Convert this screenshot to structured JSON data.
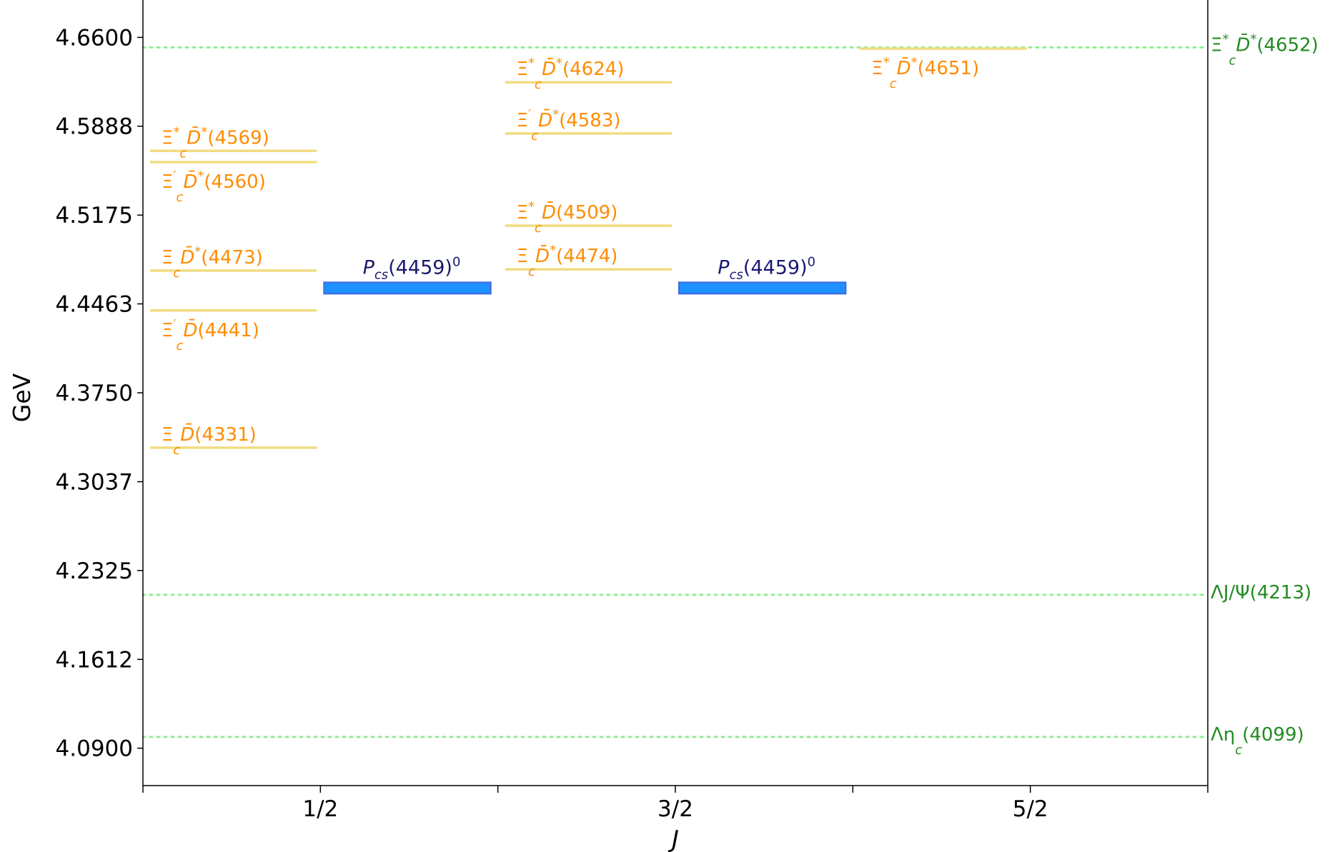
{
  "chart_data": {
    "type": "level-diagram",
    "title": "",
    "xlabel": "J",
    "ylabel": "GeV",
    "xlim": [
      0,
      3
    ],
    "ylim": [
      4.06,
      4.69
    ],
    "x_ticks": [
      {
        "value": 0.5,
        "label": "1/2"
      },
      {
        "value": 1.5,
        "label": "3/2"
      },
      {
        "value": 2.5,
        "label": "5/2"
      }
    ],
    "y_ticks": [
      4.09,
      4.1612,
      4.2325,
      4.3037,
      4.375,
      4.4463,
      4.5175,
      4.5888,
      4.66
    ],
    "y_tick_labels": [
      "4.0900",
      "4.1612",
      "4.2325",
      "4.3037",
      "4.3750",
      "4.4463",
      "4.5175",
      "4.5888",
      "4.6600"
    ],
    "colors": {
      "level_line": "#f0dc82",
      "level_label": "#ff8c00",
      "threshold_line": "#90ee90",
      "threshold_label": "#228b22",
      "state_fill": "#1e90ff",
      "state_edge": "#4169e1",
      "state_label": "#191970"
    },
    "thresholds": [
      {
        "label": "Ξ*c D̄*(4652)",
        "main": "Ξ",
        "sup1": "*",
        "sub": "c",
        "mid": "D̄",
        "sup2": "*",
        "tail": "(4652)",
        "value": 4.652
      },
      {
        "label": "ΛJ/Ψ(4213)",
        "main": "ΛJ/Ψ(4213)",
        "sup1": "",
        "sub": "",
        "mid": "",
        "sup2": "",
        "tail": "",
        "value": 4.213
      },
      {
        "label": "Ληc(4099)",
        "main": "Λη",
        "sup1": "",
        "sub": "c",
        "mid": "",
        "sup2": "",
        "tail": "(4099)",
        "value": 4.099
      }
    ],
    "levels": [
      {
        "J": "1/2",
        "x": 0.5,
        "value": 4.569,
        "label": "Ξ*c D̄*(4569)",
        "main": "Ξ",
        "sup1": "*",
        "sub": "c",
        "mid": "D̄",
        "sup2": "*",
        "tail": "(4569)",
        "label_pos": "above"
      },
      {
        "J": "1/2",
        "x": 0.5,
        "value": 4.56,
        "label": "Ξ′c D̄*(4560)",
        "main": "Ξ",
        "sup1": "′",
        "sub": "c",
        "mid": "D̄",
        "sup2": "*",
        "tail": "(4560)",
        "label_pos": "below"
      },
      {
        "J": "1/2",
        "x": 0.5,
        "value": 4.473,
        "label": "Ξc D̄*(4473)",
        "main": "Ξ",
        "sup1": "",
        "sub": "c",
        "mid": "D̄",
        "sup2": "*",
        "tail": "(4473)",
        "label_pos": "above"
      },
      {
        "J": "1/2",
        "x": 0.5,
        "value": 4.441,
        "label": "Ξ′c D̄(4441)",
        "main": "Ξ",
        "sup1": "′",
        "sub": "c",
        "mid": "D̄",
        "sup2": "",
        "tail": "(4441)",
        "label_pos": "below"
      },
      {
        "J": "1/2",
        "x": 0.5,
        "value": 4.331,
        "label": "Ξc D̄(4331)",
        "main": "Ξ",
        "sup1": "",
        "sub": "c",
        "mid": "D̄",
        "sup2": "",
        "tail": "(4331)",
        "label_pos": "above"
      },
      {
        "J": "3/2",
        "x": 1.5,
        "value": 4.624,
        "label": "Ξ*c D̄*(4624)",
        "main": "Ξ",
        "sup1": "*",
        "sub": "c",
        "mid": "D̄",
        "sup2": "*",
        "tail": "(4624)",
        "label_pos": "above"
      },
      {
        "J": "3/2",
        "x": 1.5,
        "value": 4.583,
        "label": "Ξ′c D̄*(4583)",
        "main": "Ξ",
        "sup1": "′",
        "sub": "c",
        "mid": "D̄",
        "sup2": "*",
        "tail": "(4583)",
        "label_pos": "above"
      },
      {
        "J": "3/2",
        "x": 1.5,
        "value": 4.509,
        "label": "Ξ*c D̄(4509)",
        "main": "Ξ",
        "sup1": "*",
        "sub": "c",
        "mid": "D̄",
        "sup2": "",
        "tail": "(4509)",
        "label_pos": "above"
      },
      {
        "J": "3/2",
        "x": 1.5,
        "value": 4.474,
        "label": "Ξc D̄*(4474)",
        "main": "Ξ",
        "sup1": "",
        "sub": "c",
        "mid": "D̄",
        "sup2": "*",
        "tail": "(4474)",
        "label_pos": "above"
      },
      {
        "J": "5/2",
        "x": 2.5,
        "value": 4.651,
        "label": "Ξ*c D̄*(4651)",
        "main": "Ξ",
        "sup1": "*",
        "sub": "c",
        "mid": "D̄",
        "sup2": "*",
        "tail": "(4651)",
        "label_pos": "below"
      }
    ],
    "states": [
      {
        "J": "1/2",
        "x": 0.5,
        "value": 4.459,
        "label": "Pcs(4459)0",
        "main": "P",
        "sub": "cs",
        "tail": "(4459)",
        "sup": "0"
      },
      {
        "J": "3/2",
        "x": 1.5,
        "value": 4.459,
        "label": "Pcs(4459)0",
        "main": "P",
        "sub": "cs",
        "tail": "(4459)",
        "sup": "0"
      }
    ]
  }
}
